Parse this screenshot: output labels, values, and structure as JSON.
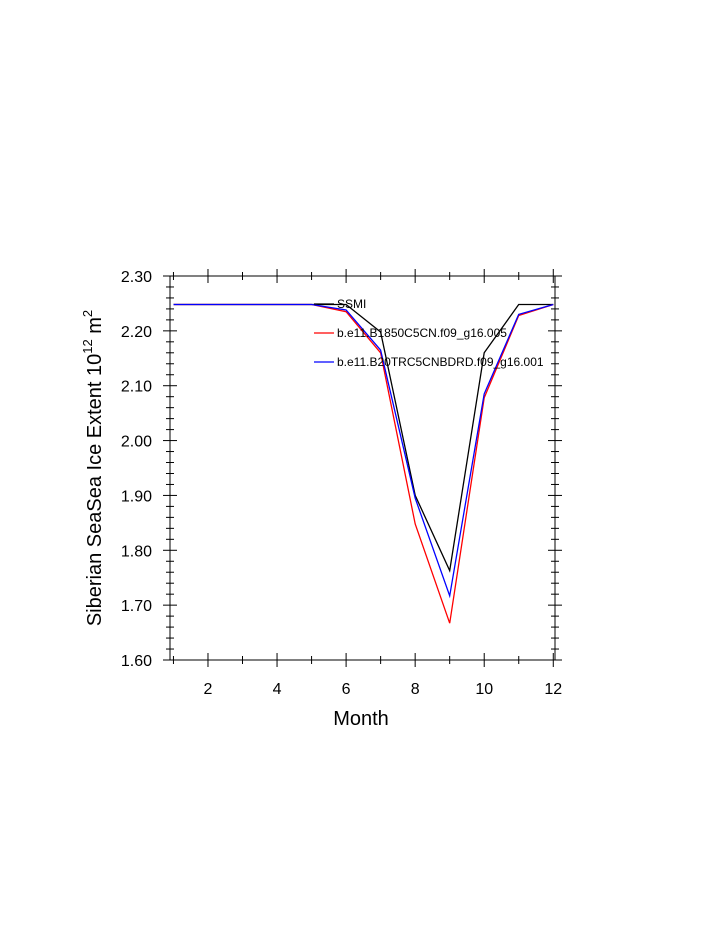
{
  "chart_data": {
    "type": "line",
    "xlabel": "Month",
    "ylabel_main": "Siberian SeaSea Ice Extent 10",
    "ylabel_exp1": "12",
    "ylabel_mid": " m",
    "ylabel_exp2": "2",
    "xlim": [
      0.9,
      12.05
    ],
    "ylim": [
      1.6,
      2.3
    ],
    "xticks": [
      2,
      4,
      6,
      8,
      10,
      12
    ],
    "yticks": [
      1.6,
      1.7,
      1.8,
      1.9,
      2.0,
      2.1,
      2.2,
      2.3
    ],
    "ytick_labels": [
      "1.60",
      "1.70",
      "1.80",
      "1.90",
      "2.00",
      "2.10",
      "2.20",
      "2.30"
    ],
    "x": [
      1,
      2,
      3,
      4,
      5,
      6,
      7,
      8,
      9,
      10,
      11,
      12
    ],
    "series": [
      {
        "name": "SSMI",
        "color": "#000000",
        "values": [
          2.248,
          2.248,
          2.248,
          2.248,
          2.248,
          2.248,
          2.198,
          1.9,
          1.763,
          2.16,
          2.248,
          2.248
        ]
      },
      {
        "name": "b.e11.B1850C5CN.f09_g16.005",
        "color": "#ff0000",
        "values": [
          2.248,
          2.248,
          2.248,
          2.248,
          2.248,
          2.235,
          2.16,
          1.848,
          1.667,
          2.078,
          2.228,
          2.248
        ]
      },
      {
        "name": "b.e11.B20TRC5CNBDRD.f09_g16.001",
        "color": "#0000ff",
        "values": [
          2.248,
          2.248,
          2.248,
          2.248,
          2.248,
          2.238,
          2.165,
          1.895,
          1.717,
          2.085,
          2.23,
          2.248
        ]
      }
    ]
  }
}
